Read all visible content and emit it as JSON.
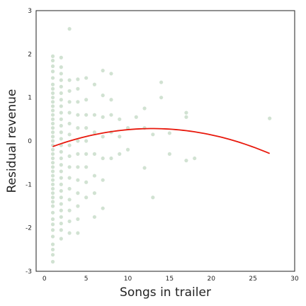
{
  "chart_data": {
    "type": "scatter",
    "title": "",
    "xlabel": "Songs in trailer",
    "ylabel": "Residual revenue",
    "xlim": [
      -1,
      30
    ],
    "ylim": [
      -3,
      3
    ],
    "xticks": [
      0,
      5,
      10,
      15,
      20,
      25,
      30
    ],
    "yticks": [
      -3,
      -2,
      -1,
      0,
      1,
      2,
      3
    ],
    "grid": false,
    "legend": "none",
    "colors": {
      "points": "#2e7d32",
      "fit_line": "#e8180c",
      "frame": "#222222"
    },
    "point_opacity": 0.22,
    "columns": [
      {
        "x": 1,
        "y": [
          -2.78,
          -2.62,
          -2.5,
          -2.38,
          -2.2,
          -2.05,
          -1.92,
          -1.8,
          -1.65,
          -1.5,
          -1.4,
          -1.3,
          -1.2,
          -1.1,
          -1.0,
          -0.9,
          -0.8,
          -0.7,
          -0.6,
          -0.5,
          -0.4,
          -0.3,
          -0.2,
          -0.1,
          0.0,
          0.1,
          0.2,
          0.3,
          0.4,
          0.5,
          0.6,
          0.7,
          0.8,
          0.9,
          1.0,
          1.1,
          1.2,
          1.3,
          1.45,
          1.6,
          1.72,
          1.85,
          1.95
        ]
      },
      {
        "x": 2,
        "y": [
          -2.25,
          -2.05,
          -1.9,
          -1.75,
          -1.6,
          -1.45,
          -1.3,
          -1.15,
          -1.0,
          -0.85,
          -0.7,
          -0.55,
          -0.4,
          -0.25,
          -0.1,
          0.05,
          0.2,
          0.35,
          0.5,
          0.65,
          0.8,
          0.95,
          1.1,
          1.25,
          1.4,
          1.55,
          1.7,
          1.92
        ]
      },
      {
        "x": 3,
        "y": [
          -2.12,
          -1.85,
          -1.6,
          -1.35,
          -1.1,
          -0.85,
          -0.6,
          -0.35,
          -0.1,
          0.15,
          0.4,
          0.65,
          0.9,
          1.15,
          1.4,
          2.58
        ]
      },
      {
        "x": 4,
        "y": [
          -2.12,
          -1.8,
          -1.5,
          -1.2,
          -0.9,
          -0.6,
          -0.3,
          0.0,
          0.3,
          0.6,
          0.9,
          1.2,
          1.42
        ]
      },
      {
        "x": 5,
        "y": [
          -1.3,
          -0.95,
          -0.6,
          -0.3,
          0.0,
          0.3,
          0.6,
          0.95,
          1.45
        ]
      },
      {
        "x": 6,
        "y": [
          -1.75,
          -1.2,
          -0.8,
          -0.3,
          0.2,
          0.6,
          1.3
        ]
      },
      {
        "x": 7,
        "y": [
          -1.55,
          -0.9,
          -0.4,
          0.1,
          0.55,
          1.05,
          1.62
        ]
      },
      {
        "x": 8,
        "y": [
          -0.4,
          0.2,
          0.6,
          0.95,
          1.55
        ]
      },
      {
        "x": 9,
        "y": [
          -0.3,
          0.1,
          0.5
        ]
      },
      {
        "x": 10,
        "y": [
          -0.2,
          0.3
        ]
      },
      {
        "x": 11,
        "y": [
          0.55
        ]
      },
      {
        "x": 12,
        "y": [
          -0.62,
          0.3,
          0.75
        ]
      },
      {
        "x": 13,
        "y": [
          -1.3,
          0.15
        ]
      },
      {
        "x": 14,
        "y": [
          1.0,
          1.35
        ]
      },
      {
        "x": 15,
        "y": [
          -0.3,
          0.18
        ]
      },
      {
        "x": 17,
        "y": [
          -0.45,
          0.55,
          0.65
        ]
      },
      {
        "x": 18,
        "y": [
          -0.4
        ]
      },
      {
        "x": 27,
        "y": [
          0.52
        ]
      }
    ],
    "fit_line": {
      "x": [
        1,
        27
      ],
      "coefficients": [
        -0.2,
        0.075,
        -0.0029
      ]
    }
  }
}
